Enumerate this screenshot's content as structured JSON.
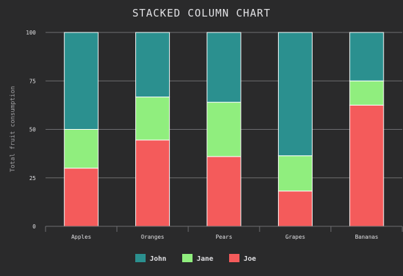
{
  "chart_data": {
    "type": "bar",
    "stacked": true,
    "title": "STACKED COLUMN CHART",
    "xlabel": "",
    "ylabel": "Total fruit consumption",
    "categories": [
      "Apples",
      "Oranges",
      "Pears",
      "Grapes",
      "Bananas"
    ],
    "ylim": [
      0,
      100
    ],
    "y_ticks": [
      0,
      25,
      50,
      75,
      100
    ],
    "series": [
      {
        "name": "John",
        "color": "#2b908f",
        "values": [
          50,
          33.3,
          36,
          63.6,
          25
        ]
      },
      {
        "name": "Jane",
        "color": "#90ee7e",
        "values": [
          20,
          22.2,
          28,
          18.2,
          12.5
        ]
      },
      {
        "name": "Joe",
        "color": "#f45b5b",
        "values": [
          30,
          44.5,
          36,
          18.2,
          62.5
        ]
      }
    ],
    "stack_order_bottom_to_top": [
      "Joe",
      "Jane",
      "John"
    ],
    "grid": true,
    "legend_position": "bottom-center",
    "background_color": "#2a2a2b",
    "text_color": "#e0e0e3"
  }
}
